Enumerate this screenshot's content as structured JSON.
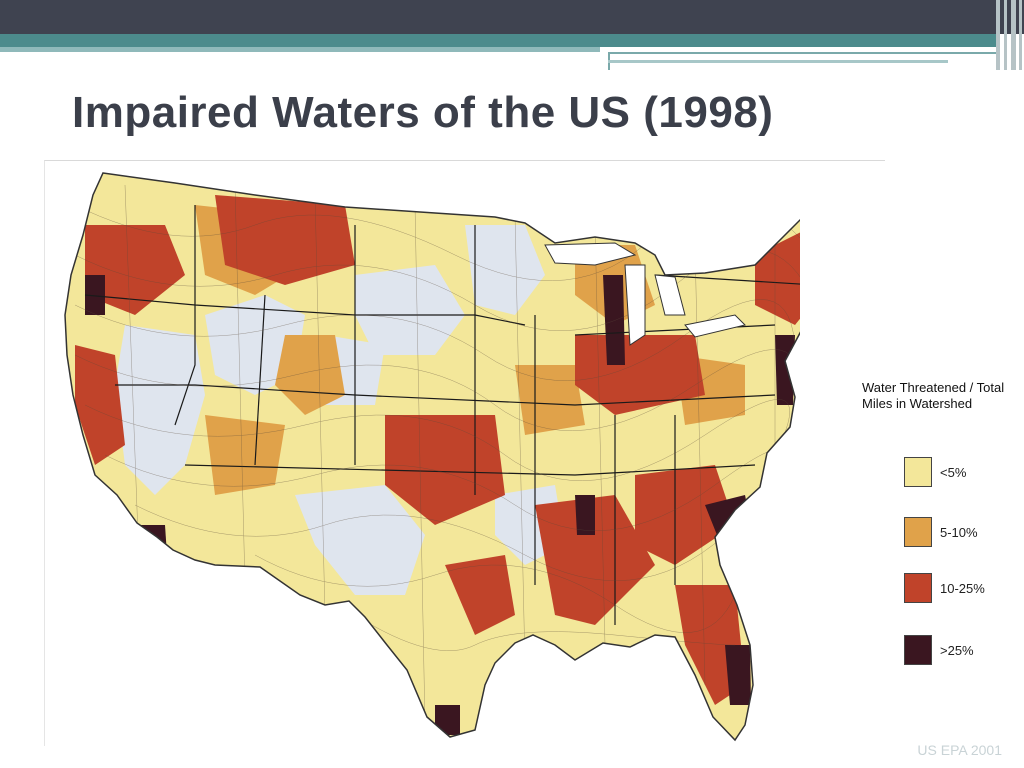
{
  "slide": {
    "title": "Impaired Waters of the US (1998)",
    "credit": "US EPA 2001"
  },
  "legend": {
    "title": "Water Threatened / Total Miles in Watershed",
    "items": [
      {
        "label": "<5%",
        "color": "#f3e79a"
      },
      {
        "label": "5-10%",
        "color": "#e0a24a"
      },
      {
        "label": "10-25%",
        "color": "#c0432a"
      },
      {
        "label": ">25%",
        "color": "#3a1620"
      }
    ]
  },
  "map": {
    "colors": {
      "none": "#dfe5ee",
      "low": "#f3e79a",
      "moderate": "#e0a24a",
      "high": "#c0432a",
      "severe": "#3a1620",
      "boundary": "#1a1a1a"
    }
  }
}
